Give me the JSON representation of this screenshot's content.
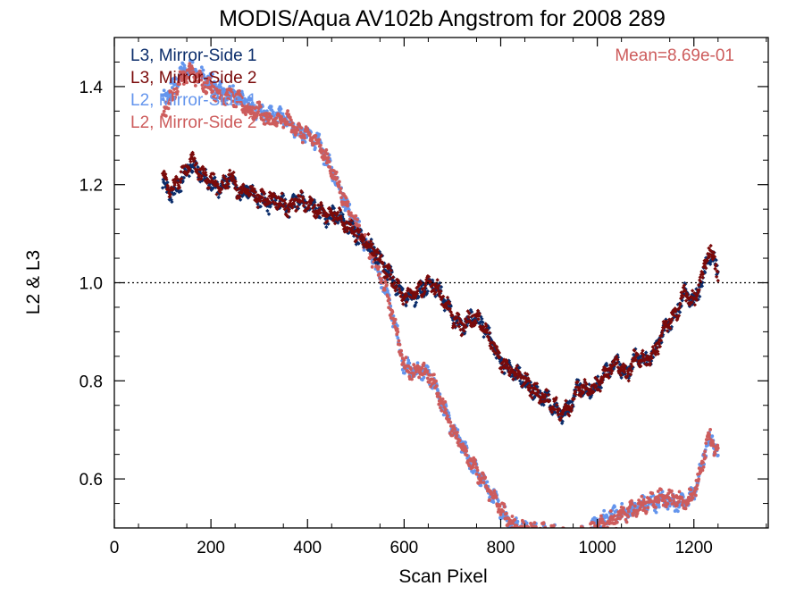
{
  "chart_data": {
    "type": "scatter",
    "title": "MODIS/Aqua AV102b Angstrom for 2008 289",
    "xlabel": "Scan Pixel",
    "ylabel": "L2 & L3",
    "xlim": [
      0,
      1354
    ],
    "ylim": [
      0.5,
      1.5
    ],
    "x_ticks": [
      0,
      200,
      400,
      600,
      800,
      1000,
      1200
    ],
    "x_tick_labels": [
      "0",
      "200",
      "400",
      "600",
      "800",
      "1000",
      "1200"
    ],
    "y_ticks": [
      0.6,
      0.8,
      1.0,
      1.2,
      1.4
    ],
    "y_tick_labels": [
      "0.6",
      "0.8",
      "1.0",
      "1.2",
      "1.4"
    ],
    "reference_line": {
      "y": 1.0,
      "style": "dotted"
    },
    "annotation": {
      "text": "Mean=8.69e-01",
      "color": "#cd5c5c"
    },
    "legend_position": "top-left",
    "x_range": [
      100,
      1250
    ],
    "series": [
      {
        "name": "L3, Mirror-Side 1",
        "color": "#0b2d6b",
        "control_points": [
          [
            100,
            1.2
          ],
          [
            120,
            1.18
          ],
          [
            140,
            1.21
          ],
          [
            160,
            1.24
          ],
          [
            180,
            1.22
          ],
          [
            200,
            1.2
          ],
          [
            220,
            1.19
          ],
          [
            240,
            1.21
          ],
          [
            260,
            1.18
          ],
          [
            280,
            1.19
          ],
          [
            300,
            1.17
          ],
          [
            320,
            1.16
          ],
          [
            340,
            1.17
          ],
          [
            360,
            1.15
          ],
          [
            380,
            1.17
          ],
          [
            400,
            1.16
          ],
          [
            420,
            1.15
          ],
          [
            440,
            1.13
          ],
          [
            460,
            1.14
          ],
          [
            480,
            1.12
          ],
          [
            500,
            1.1
          ],
          [
            520,
            1.08
          ],
          [
            540,
            1.06
          ],
          [
            560,
            1.03
          ],
          [
            580,
            1.0
          ],
          [
            600,
            0.97
          ],
          [
            620,
            0.97
          ],
          [
            640,
            0.99
          ],
          [
            660,
            1.0
          ],
          [
            680,
            0.97
          ],
          [
            700,
            0.93
          ],
          [
            720,
            0.91
          ],
          [
            740,
            0.93
          ],
          [
            760,
            0.92
          ],
          [
            780,
            0.88
          ],
          [
            800,
            0.84
          ],
          [
            820,
            0.82
          ],
          [
            840,
            0.81
          ],
          [
            860,
            0.79
          ],
          [
            880,
            0.77
          ],
          [
            900,
            0.76
          ],
          [
            920,
            0.73
          ],
          [
            940,
            0.74
          ],
          [
            960,
            0.79
          ],
          [
            980,
            0.78
          ],
          [
            1000,
            0.79
          ],
          [
            1020,
            0.82
          ],
          [
            1040,
            0.84
          ],
          [
            1060,
            0.81
          ],
          [
            1080,
            0.85
          ],
          [
            1100,
            0.84
          ],
          [
            1120,
            0.86
          ],
          [
            1140,
            0.91
          ],
          [
            1160,
            0.93
          ],
          [
            1180,
            0.98
          ],
          [
            1200,
            0.96
          ],
          [
            1220,
            1.01
          ],
          [
            1230,
            1.06
          ],
          [
            1240,
            1.05
          ],
          [
            1250,
            1.02
          ]
        ]
      },
      {
        "name": "L3, Mirror-Side 2",
        "color": "#7a0a0a",
        "control_points": [
          [
            100,
            1.21
          ],
          [
            120,
            1.19
          ],
          [
            140,
            1.22
          ],
          [
            160,
            1.25
          ],
          [
            180,
            1.22
          ],
          [
            200,
            1.21
          ],
          [
            220,
            1.19
          ],
          [
            240,
            1.22
          ],
          [
            260,
            1.18
          ],
          [
            280,
            1.19
          ],
          [
            300,
            1.17
          ],
          [
            320,
            1.17
          ],
          [
            340,
            1.17
          ],
          [
            360,
            1.15
          ],
          [
            380,
            1.17
          ],
          [
            400,
            1.16
          ],
          [
            420,
            1.15
          ],
          [
            440,
            1.14
          ],
          [
            460,
            1.14
          ],
          [
            480,
            1.12
          ],
          [
            500,
            1.1
          ],
          [
            520,
            1.09
          ],
          [
            540,
            1.06
          ],
          [
            560,
            1.03
          ],
          [
            580,
            1.0
          ],
          [
            600,
            0.97
          ],
          [
            620,
            0.98
          ],
          [
            640,
            0.99
          ],
          [
            660,
            1.0
          ],
          [
            680,
            0.97
          ],
          [
            700,
            0.93
          ],
          [
            720,
            0.91
          ],
          [
            740,
            0.93
          ],
          [
            760,
            0.92
          ],
          [
            780,
            0.88
          ],
          [
            800,
            0.84
          ],
          [
            820,
            0.82
          ],
          [
            840,
            0.81
          ],
          [
            860,
            0.79
          ],
          [
            880,
            0.77
          ],
          [
            900,
            0.76
          ],
          [
            920,
            0.74
          ],
          [
            940,
            0.74
          ],
          [
            960,
            0.79
          ],
          [
            980,
            0.78
          ],
          [
            1000,
            0.79
          ],
          [
            1020,
            0.82
          ],
          [
            1040,
            0.84
          ],
          [
            1060,
            0.81
          ],
          [
            1080,
            0.85
          ],
          [
            1100,
            0.84
          ],
          [
            1120,
            0.86
          ],
          [
            1140,
            0.91
          ],
          [
            1160,
            0.93
          ],
          [
            1180,
            0.98
          ],
          [
            1200,
            0.96
          ],
          [
            1220,
            1.02
          ],
          [
            1230,
            1.07
          ],
          [
            1240,
            1.05
          ],
          [
            1250,
            1.02
          ]
        ]
      },
      {
        "name": "L2, Mirror-Side 1",
        "color": "#6495ed",
        "control_points": [
          [
            100,
            1.37
          ],
          [
            120,
            1.4
          ],
          [
            140,
            1.43
          ],
          [
            160,
            1.44
          ],
          [
            180,
            1.42
          ],
          [
            200,
            1.41
          ],
          [
            220,
            1.39
          ],
          [
            240,
            1.39
          ],
          [
            260,
            1.38
          ],
          [
            280,
            1.36
          ],
          [
            300,
            1.35
          ],
          [
            320,
            1.34
          ],
          [
            340,
            1.34
          ],
          [
            360,
            1.33
          ],
          [
            380,
            1.31
          ],
          [
            400,
            1.3
          ],
          [
            420,
            1.29
          ],
          [
            440,
            1.25
          ],
          [
            460,
            1.21
          ],
          [
            480,
            1.16
          ],
          [
            500,
            1.12
          ],
          [
            520,
            1.08
          ],
          [
            540,
            1.04
          ],
          [
            560,
            0.99
          ],
          [
            580,
            0.92
          ],
          [
            600,
            0.83
          ],
          [
            620,
            0.82
          ],
          [
            640,
            0.82
          ],
          [
            660,
            0.8
          ],
          [
            680,
            0.75
          ],
          [
            700,
            0.7
          ],
          [
            720,
            0.67
          ],
          [
            740,
            0.63
          ],
          [
            760,
            0.6
          ],
          [
            780,
            0.57
          ],
          [
            800,
            0.54
          ],
          [
            820,
            0.51
          ],
          [
            840,
            0.5
          ],
          [
            950,
            0.48
          ],
          [
            980,
            0.49
          ],
          [
            1000,
            0.51
          ],
          [
            1020,
            0.52
          ],
          [
            1040,
            0.53
          ],
          [
            1060,
            0.53
          ],
          [
            1080,
            0.54
          ],
          [
            1100,
            0.55
          ],
          [
            1120,
            0.55
          ],
          [
            1140,
            0.56
          ],
          [
            1160,
            0.55
          ],
          [
            1180,
            0.55
          ],
          [
            1200,
            0.57
          ],
          [
            1220,
            0.64
          ],
          [
            1230,
            0.68
          ],
          [
            1240,
            0.67
          ],
          [
            1250,
            0.66
          ]
        ]
      },
      {
        "name": "L2, Mirror-Side 2",
        "color": "#cd5c5c",
        "control_points": [
          [
            100,
            1.35
          ],
          [
            120,
            1.38
          ],
          [
            140,
            1.42
          ],
          [
            160,
            1.43
          ],
          [
            180,
            1.41
          ],
          [
            200,
            1.4
          ],
          [
            220,
            1.38
          ],
          [
            240,
            1.38
          ],
          [
            260,
            1.37
          ],
          [
            280,
            1.35
          ],
          [
            300,
            1.35
          ],
          [
            320,
            1.33
          ],
          [
            340,
            1.33
          ],
          [
            360,
            1.33
          ],
          [
            380,
            1.31
          ],
          [
            400,
            1.3
          ],
          [
            420,
            1.29
          ],
          [
            440,
            1.25
          ],
          [
            460,
            1.21
          ],
          [
            480,
            1.16
          ],
          [
            500,
            1.12
          ],
          [
            520,
            1.08
          ],
          [
            540,
            1.04
          ],
          [
            560,
            0.99
          ],
          [
            580,
            0.92
          ],
          [
            600,
            0.83
          ],
          [
            620,
            0.82
          ],
          [
            640,
            0.82
          ],
          [
            660,
            0.8
          ],
          [
            680,
            0.75
          ],
          [
            700,
            0.7
          ],
          [
            720,
            0.67
          ],
          [
            740,
            0.63
          ],
          [
            760,
            0.6
          ],
          [
            780,
            0.57
          ],
          [
            800,
            0.54
          ],
          [
            820,
            0.51
          ],
          [
            840,
            0.5
          ],
          [
            950,
            0.48
          ],
          [
            980,
            0.49
          ],
          [
            1000,
            0.5
          ],
          [
            1020,
            0.51
          ],
          [
            1040,
            0.52
          ],
          [
            1060,
            0.53
          ],
          [
            1080,
            0.54
          ],
          [
            1100,
            0.55
          ],
          [
            1120,
            0.56
          ],
          [
            1140,
            0.56
          ],
          [
            1160,
            0.56
          ],
          [
            1180,
            0.55
          ],
          [
            1200,
            0.57
          ],
          [
            1220,
            0.64
          ],
          [
            1230,
            0.69
          ],
          [
            1240,
            0.67
          ],
          [
            1250,
            0.65
          ]
        ]
      }
    ]
  }
}
